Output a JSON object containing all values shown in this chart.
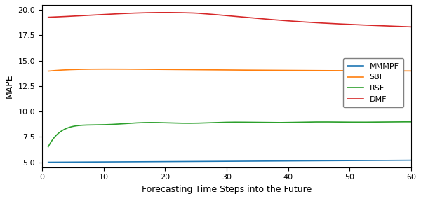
{
  "title": "",
  "xlabel": "Forecasting Time Steps into the Future",
  "ylabel": "MAPE",
  "xlim": [
    0,
    60
  ],
  "ylim": [
    4.5,
    20.5
  ],
  "yticks": [
    5.0,
    7.5,
    10.0,
    12.5,
    15.0,
    17.5,
    20.0
  ],
  "xticks": [
    0,
    10,
    20,
    30,
    40,
    50,
    60
  ],
  "legend_labels": [
    "MMMPF",
    "SBF",
    "RSF",
    "DMF"
  ],
  "colors": {
    "MMMPF": "#1f77b4",
    "SBF": "#ff7f0e",
    "RSF": "#2ca02c",
    "DMF": "#d62728"
  },
  "figsize": [
    6.0,
    2.84
  ],
  "dpi": 100
}
